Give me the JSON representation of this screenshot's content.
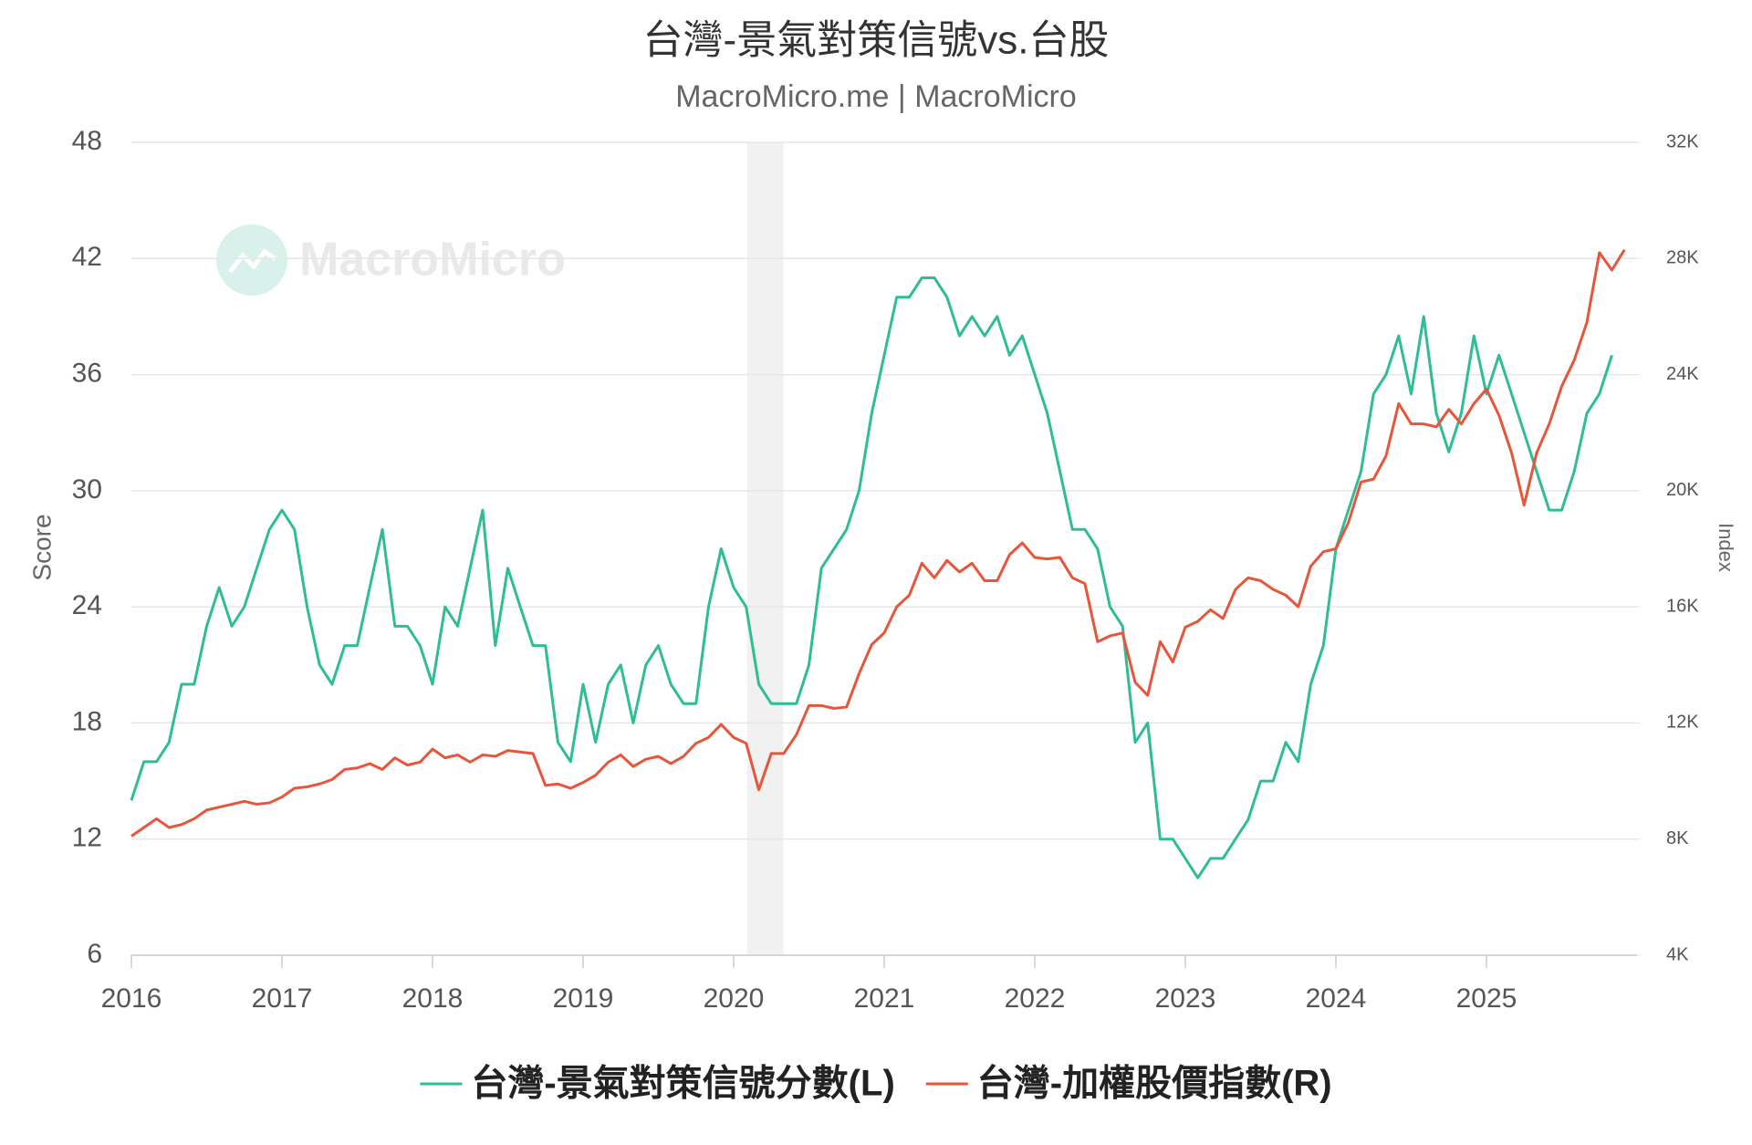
{
  "chart_data": {
    "type": "line",
    "title": "台灣-景氣對策信號vs.台股",
    "subtitle": "MacroMicro.me | MacroMicro",
    "watermark": "MacroMicro",
    "y_label": "Score",
    "y2_label": "Index",
    "xlim": [
      2016,
      2026
    ],
    "xticks": [
      2016,
      2017,
      2018,
      2019,
      2020,
      2021,
      2022,
      2023,
      2024,
      2025
    ],
    "ylim": [
      6,
      48
    ],
    "yticks": [
      6,
      12,
      18,
      24,
      30,
      36,
      42,
      48
    ],
    "y2lim": [
      4000,
      32000
    ],
    "y2ticks": [
      {
        "value": 4000,
        "label": "4K"
      },
      {
        "value": 8000,
        "label": "8K"
      },
      {
        "value": 12000,
        "label": "12K"
      },
      {
        "value": 16000,
        "label": "16K"
      },
      {
        "value": 20000,
        "label": "20K"
      },
      {
        "value": 24000,
        "label": "24K"
      },
      {
        "value": 28000,
        "label": "28K"
      },
      {
        "value": 32000,
        "label": "32K"
      }
    ],
    "grid": true,
    "shaded_ranges": [
      [
        2020.09,
        2020.33
      ]
    ],
    "legend": "bottom",
    "x": [
      2016,
      2016.083,
      2016.167,
      2016.25,
      2016.333,
      2016.417,
      2016.5,
      2016.583,
      2016.667,
      2016.75,
      2016.833,
      2016.917,
      2017,
      2017.083,
      2017.167,
      2017.25,
      2017.333,
      2017.417,
      2017.5,
      2017.583,
      2017.667,
      2017.75,
      2017.833,
      2017.917,
      2018,
      2018.083,
      2018.167,
      2018.25,
      2018.333,
      2018.417,
      2018.5,
      2018.583,
      2018.667,
      2018.75,
      2018.833,
      2018.917,
      2019,
      2019.083,
      2019.167,
      2019.25,
      2019.333,
      2019.417,
      2019.5,
      2019.583,
      2019.667,
      2019.75,
      2019.833,
      2019.917,
      2020,
      2020.083,
      2020.167,
      2020.25,
      2020.333,
      2020.417,
      2020.5,
      2020.583,
      2020.667,
      2020.75,
      2020.833,
      2020.917,
      2021,
      2021.083,
      2021.167,
      2021.25,
      2021.333,
      2021.417,
      2021.5,
      2021.583,
      2021.667,
      2021.75,
      2021.833,
      2021.917,
      2022,
      2022.083,
      2022.167,
      2022.25,
      2022.333,
      2022.417,
      2022.5,
      2022.583,
      2022.667,
      2022.75,
      2022.833,
      2022.917,
      2023,
      2023.083,
      2023.167,
      2023.25,
      2023.333,
      2023.417,
      2023.5,
      2023.583,
      2023.667,
      2023.75,
      2023.833,
      2023.917,
      2024,
      2024.083,
      2024.167,
      2024.25,
      2024.333,
      2024.417,
      2024.5,
      2024.583,
      2024.667,
      2024.75,
      2024.833,
      2024.917,
      2025,
      2025.083,
      2025.167,
      2025.25,
      2025.333,
      2025.417,
      2025.5,
      2025.583,
      2025.667,
      2025.75,
      2025.833,
      2025.917
    ],
    "series": [
      {
        "name": "台灣-景氣對策信號分數(L)",
        "color": "#2ebd95",
        "axis": "y",
        "values": [
          14,
          16,
          16,
          17,
          20,
          20,
          23,
          25,
          23,
          24,
          26,
          28,
          29,
          28,
          24,
          21,
          20,
          22,
          22,
          25,
          28,
          23,
          23,
          22,
          20,
          24,
          23,
          26,
          29,
          22,
          26,
          24,
          22,
          22,
          17,
          16,
          20,
          17,
          20,
          21,
          18,
          21,
          22,
          20,
          19,
          19,
          24,
          27,
          25,
          24,
          20,
          19,
          19,
          19,
          21,
          26,
          27,
          28,
          30,
          34,
          37,
          40,
          40,
          41,
          41,
          40,
          38,
          39,
          38,
          39,
          37,
          38,
          36,
          34,
          31,
          28,
          28,
          27,
          24,
          23,
          17,
          18,
          12,
          12,
          11,
          10,
          11,
          11,
          12,
          13,
          15,
          15,
          17,
          16,
          20,
          22,
          27,
          29,
          31,
          35,
          36,
          38,
          35,
          39,
          34,
          32,
          34,
          38,
          35,
          37,
          35,
          33,
          31,
          29,
          29,
          31,
          34,
          35,
          37,
          null
        ]
      },
      {
        "name": "台灣-加權股價指數(R)",
        "color": "#e8553a",
        "axis": "y2",
        "values": [
          8100,
          8400,
          8700,
          8400,
          8500,
          8700,
          9000,
          9100,
          9200,
          9300,
          9200,
          9250,
          9450,
          9750,
          9800,
          9900,
          10050,
          10400,
          10450,
          10600,
          10400,
          10800,
          10550,
          10650,
          11100,
          10800,
          10900,
          10650,
          10900,
          10850,
          11050,
          11000,
          10950,
          9850,
          9900,
          9750,
          9950,
          10200,
          10650,
          10900,
          10500,
          10750,
          10850,
          10600,
          10850,
          11300,
          11500,
          11950,
          11500,
          11300,
          9700,
          10950,
          10950,
          11600,
          12600,
          12600,
          12500,
          12550,
          13700,
          14700,
          15100,
          16000,
          16400,
          17500,
          17000,
          17600,
          17200,
          17500,
          16900,
          16900,
          17800,
          18200,
          17700,
          17650,
          17700,
          17000,
          16800,
          14800,
          15000,
          15100,
          13400,
          12950,
          14800,
          14100,
          15300,
          15500,
          15900,
          15600,
          16600,
          17000,
          16900,
          16600,
          16400,
          16000,
          17400,
          17900,
          18000,
          18900,
          20300,
          20400,
          21200,
          23000,
          22300,
          22300,
          22200,
          22800,
          22300,
          23000,
          23500,
          22600,
          21300,
          19500,
          21300,
          22300,
          23600,
          24500,
          25800,
          28200,
          27600,
          28300
        ]
      }
    ]
  }
}
